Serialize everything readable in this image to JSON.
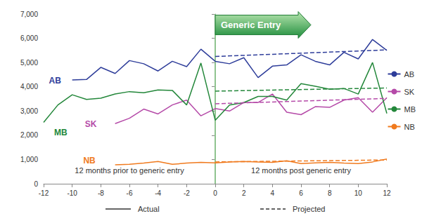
{
  "chart_data": {
    "type": "line",
    "x": [
      -12,
      -11,
      -10,
      -9,
      -8,
      -7,
      -6,
      -5,
      -4,
      -3,
      -2,
      -1,
      0,
      1,
      2,
      3,
      4,
      5,
      6,
      7,
      8,
      9,
      10,
      11,
      12
    ],
    "xlim": [
      -12,
      12
    ],
    "xticks": [
      -12,
      -10,
      -8,
      -6,
      -4,
      -2,
      0,
      2,
      4,
      6,
      8,
      10,
      12
    ],
    "ylim": [
      0,
      7000
    ],
    "yticks": [
      0,
      {
        "value": 1000,
        "label": "1,000"
      },
      {
        "value": 2000,
        "label": "2,000"
      },
      {
        "value": 3000,
        "label": "3,000"
      },
      {
        "value": 4000,
        "label": "4,000"
      },
      {
        "value": 5000,
        "label": "5,000"
      },
      {
        "value": 6000,
        "label": "6,000"
      },
      {
        "value": 7000,
        "label": "7,000"
      }
    ],
    "grid": false,
    "legend": "right",
    "series": [
      {
        "name": "AB",
        "color": "#2e3d9a",
        "values": [
          null,
          null,
          4280,
          4300,
          4800,
          4550,
          5080,
          4950,
          4650,
          5050,
          4830,
          5550,
          5050,
          4950,
          5200,
          4380,
          4850,
          4900,
          5320,
          5050,
          4900,
          5420,
          5150,
          5950,
          5500
        ],
        "projected": [
          null,
          null,
          null,
          null,
          null,
          null,
          null,
          null,
          null,
          null,
          null,
          null,
          5250,
          null,
          null,
          null,
          null,
          null,
          null,
          null,
          null,
          null,
          null,
          null,
          5520
        ]
      },
      {
        "name": "SK",
        "color": "#b54aa8",
        "values": [
          null,
          null,
          null,
          null,
          null,
          2480,
          2700,
          3080,
          2880,
          3250,
          3450,
          2800,
          3100,
          3000,
          3350,
          3350,
          3700,
          2950,
          2850,
          3180,
          3150,
          3450,
          3550,
          2950,
          3550
        ],
        "projected": [
          null,
          null,
          null,
          null,
          null,
          null,
          null,
          null,
          null,
          null,
          null,
          null,
          3300,
          null,
          null,
          null,
          null,
          null,
          null,
          null,
          null,
          null,
          null,
          null,
          3520
        ]
      },
      {
        "name": "MB",
        "color": "#23873a",
        "values": [
          2530,
          3250,
          3670,
          3480,
          3530,
          3700,
          3800,
          3750,
          3870,
          3850,
          3250,
          4980,
          2620,
          3250,
          3350,
          3600,
          3600,
          3450,
          4130,
          4020,
          3900,
          3930,
          3700,
          5000,
          2900
        ],
        "projected": [
          null,
          null,
          null,
          null,
          null,
          null,
          null,
          null,
          null,
          null,
          null,
          null,
          3820,
          null,
          null,
          null,
          null,
          null,
          null,
          null,
          null,
          null,
          null,
          null,
          3950
        ]
      },
      {
        "name": "NB",
        "color": "#f07a1e",
        "values": [
          null,
          null,
          null,
          null,
          null,
          780,
          800,
          850,
          920,
          800,
          850,
          880,
          860,
          900,
          920,
          900,
          880,
          950,
          830,
          860,
          880,
          850,
          830,
          900,
          1020
        ],
        "projected": [
          null,
          null,
          null,
          null,
          null,
          null,
          null,
          null,
          null,
          null,
          null,
          null,
          900,
          null,
          null,
          null,
          null,
          null,
          null,
          null,
          null,
          null,
          null,
          null,
          980
        ]
      }
    ],
    "style_legend": [
      {
        "label": "Actual",
        "line_style": "solid"
      },
      {
        "label": "Projected",
        "line_style": "dashed"
      }
    ],
    "reference_x": 0,
    "arrow_annotation": {
      "text": "Generic Entry",
      "x": 0,
      "y": 6550
    },
    "series_labels": [
      {
        "name": "AB",
        "x": -11.2,
        "y": 4250
      },
      {
        "name": "SK",
        "x": -8.7,
        "y": 2450
      },
      {
        "name": "MB",
        "x": -10.8,
        "y": 2100
      },
      {
        "name": "NB",
        "x": -8.8,
        "y": 950
      }
    ],
    "annotations": [
      {
        "text": "12 months prior to generic entry",
        "x": -6,
        "y": 550
      },
      {
        "text": "12 months post generic entry",
        "x": 6,
        "y": 550
      }
    ]
  }
}
